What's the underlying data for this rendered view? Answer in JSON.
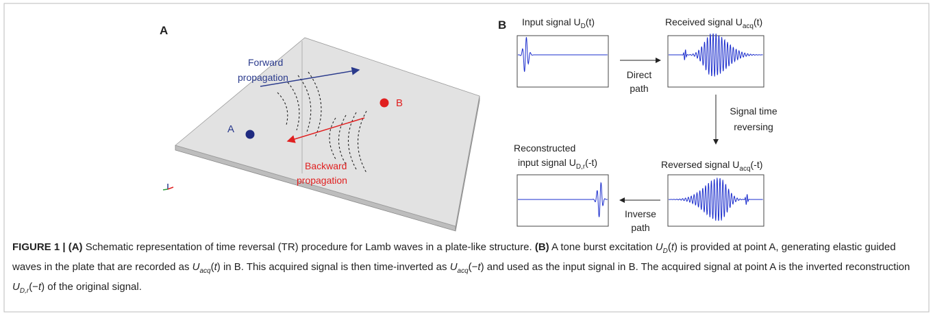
{
  "panel_a": {
    "label": "A",
    "forward": [
      "Forward",
      "propagation"
    ],
    "backward": [
      "Backward",
      "propagation"
    ],
    "point_a": "A",
    "point_b": "B"
  },
  "panel_b": {
    "label": "B",
    "input": {
      "text": "Input signal U",
      "sub": "D",
      "tail": "(t)"
    },
    "received": {
      "text": "Received signal U",
      "sub": "acq",
      "tail": "(t)"
    },
    "reversed": {
      "text": "Reversed signal U",
      "sub": "acq",
      "tail": "(-t)"
    },
    "reconstructed": {
      "line1": "Reconstructed",
      "text": "input signal U",
      "sub": "D,r",
      "tail": "(-t)"
    },
    "direct": [
      "Direct",
      "path"
    ],
    "time_reversing": [
      "Signal time",
      "reversing"
    ],
    "inverse": [
      "Inverse",
      "path"
    ]
  },
  "caption": [
    "FIGURE 1 | (A)",
    " Schematic representation of time reversal (TR) procedure for Lamb waves in a plate-like structure. ",
    "(B)",
    " A tone burst excitation ",
    "U",
    "D",
    "(",
    "t",
    ") is provided at point A, generating elastic guided waves in the plate that are recorded as ",
    "U",
    "acq",
    "(",
    "t",
    ") in B. This acquired signal is then time-inverted as ",
    "U",
    "acq",
    "(−",
    "t",
    ") and used as the input signal in B. The acquired signal at point A is the inverted reconstruction ",
    "U",
    "D,r",
    "(−",
    "t",
    ") of the original signal."
  ]
}
